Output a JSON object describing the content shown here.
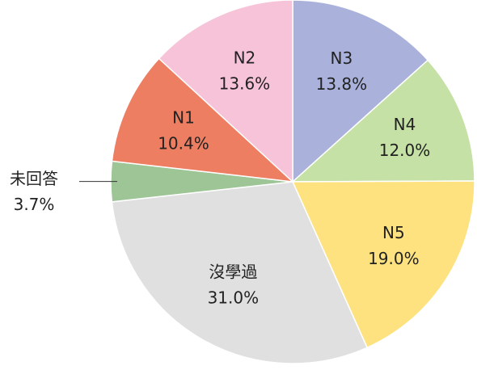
{
  "chart_data": {
    "type": "pie",
    "categories": [
      "N3",
      "N4",
      "N5",
      "沒學過",
      "未回答",
      "N1",
      "N2"
    ],
    "values": [
      13.8,
      12.0,
      19.0,
      31.0,
      3.7,
      10.4,
      13.6
    ],
    "value_labels": [
      "13.8%",
      "12.0%",
      "19.0%",
      "31.0%",
      "3.7%",
      "10.4%",
      "13.6%"
    ],
    "colors": [
      "#aab2dc",
      "#c6e1a6",
      "#fde27f",
      "#e0e0e0",
      "#9dc596",
      "#ed7e62",
      "#f7c3d8"
    ]
  }
}
